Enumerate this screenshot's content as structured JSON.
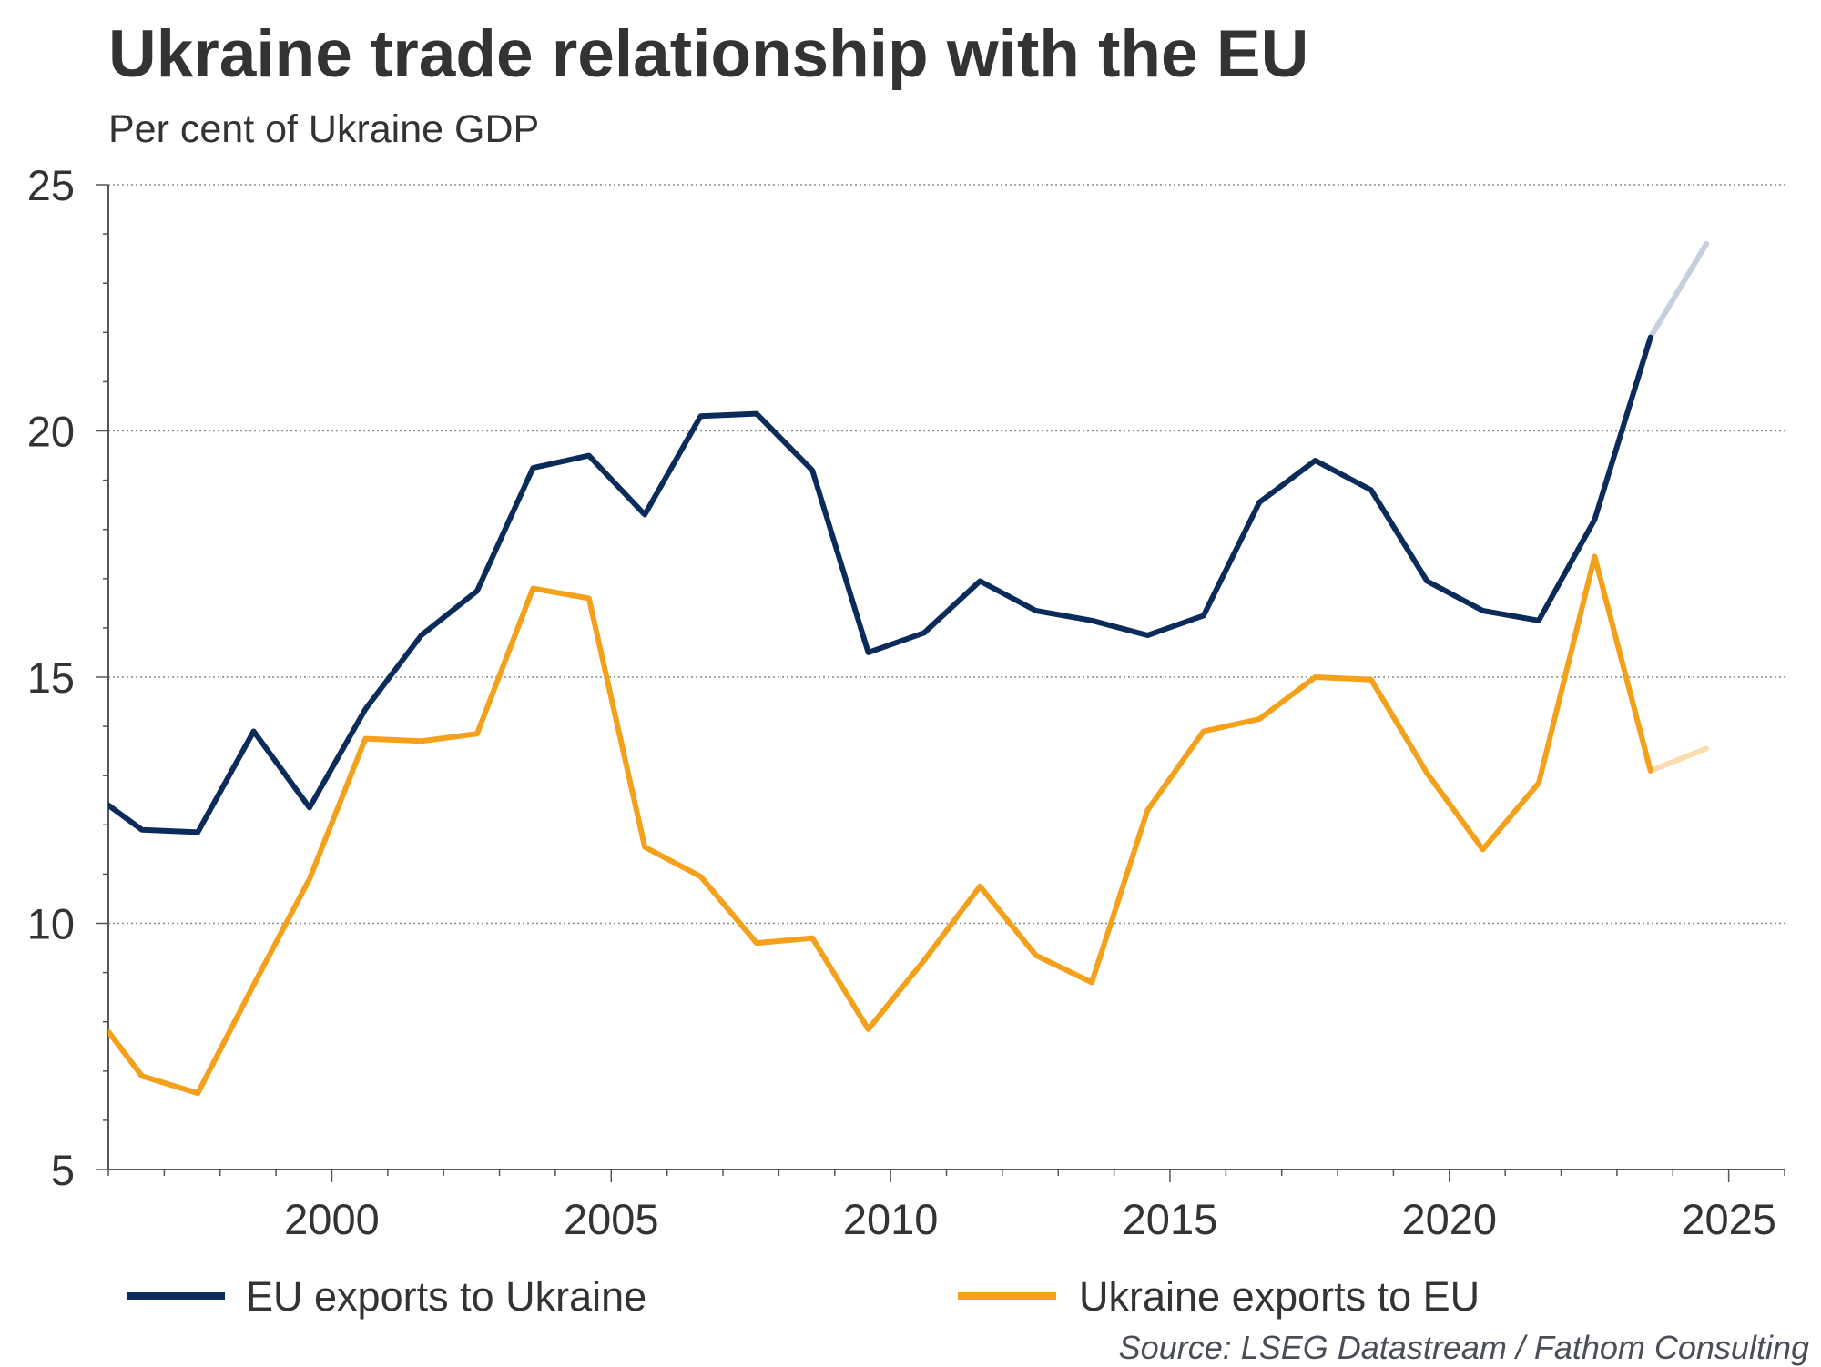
{
  "header": {
    "title": "Ukraine trade relationship with the EU",
    "subtitle": "Per cent of Ukraine GDP"
  },
  "footer": {
    "source": "Source: LSEG Datastream / Fathom Consulting"
  },
  "chart_data": {
    "type": "line",
    "title": "Ukraine trade relationship with the EU",
    "subtitle": "Per cent of Ukraine GDP",
    "xlabel": "",
    "ylabel": "",
    "xlim": [
      1996,
      2026
    ],
    "ylim": [
      5,
      25
    ],
    "x_ticks": [
      2000,
      2005,
      2010,
      2015,
      2020,
      2025
    ],
    "y_ticks": [
      5,
      10,
      15,
      20,
      25
    ],
    "grid": "horizontal dotted",
    "legend_position": "bottom",
    "x": [
      1996,
      1996.6,
      1997.6,
      1998.6,
      1999.6,
      2000.6,
      2001.6,
      2002.6,
      2003.6,
      2004.6,
      2005.6,
      2006.6,
      2007.6,
      2008.6,
      2009.6,
      2010.6,
      2011.6,
      2012.6,
      2013.6,
      2014.6,
      2015.6,
      2016.6,
      2017.6,
      2018.6,
      2019.6,
      2020.6,
      2021.6,
      2022.6,
      2023.6,
      2024.6
    ],
    "projection_from_x": 2023.6,
    "series": [
      {
        "name": "EU exports to Ukraine",
        "color": "#0b2c5a",
        "projection_color": "#c5cfdd",
        "values": [
          12.4,
          11.9,
          11.85,
          13.9,
          12.35,
          14.35,
          15.85,
          16.75,
          19.25,
          19.5,
          18.3,
          20.3,
          20.35,
          19.2,
          15.5,
          15.9,
          16.95,
          16.35,
          16.15,
          15.85,
          16.25,
          18.55,
          19.4,
          18.8,
          16.95,
          16.35,
          16.15,
          18.2,
          21.9,
          23.8
        ]
      },
      {
        "name": "Ukraine exports to EU",
        "color": "#f5a01a",
        "projection_color": "#fbdcb0",
        "values": [
          7.8,
          6.9,
          6.55,
          8.75,
          10.9,
          13.75,
          13.7,
          13.85,
          16.8,
          16.6,
          11.55,
          10.95,
          9.6,
          9.7,
          7.85,
          9.25,
          10.75,
          9.35,
          8.8,
          12.3,
          13.9,
          14.15,
          15.0,
          14.95,
          13.05,
          11.5,
          12.85,
          17.45,
          13.1,
          13.55
        ]
      }
    ]
  }
}
